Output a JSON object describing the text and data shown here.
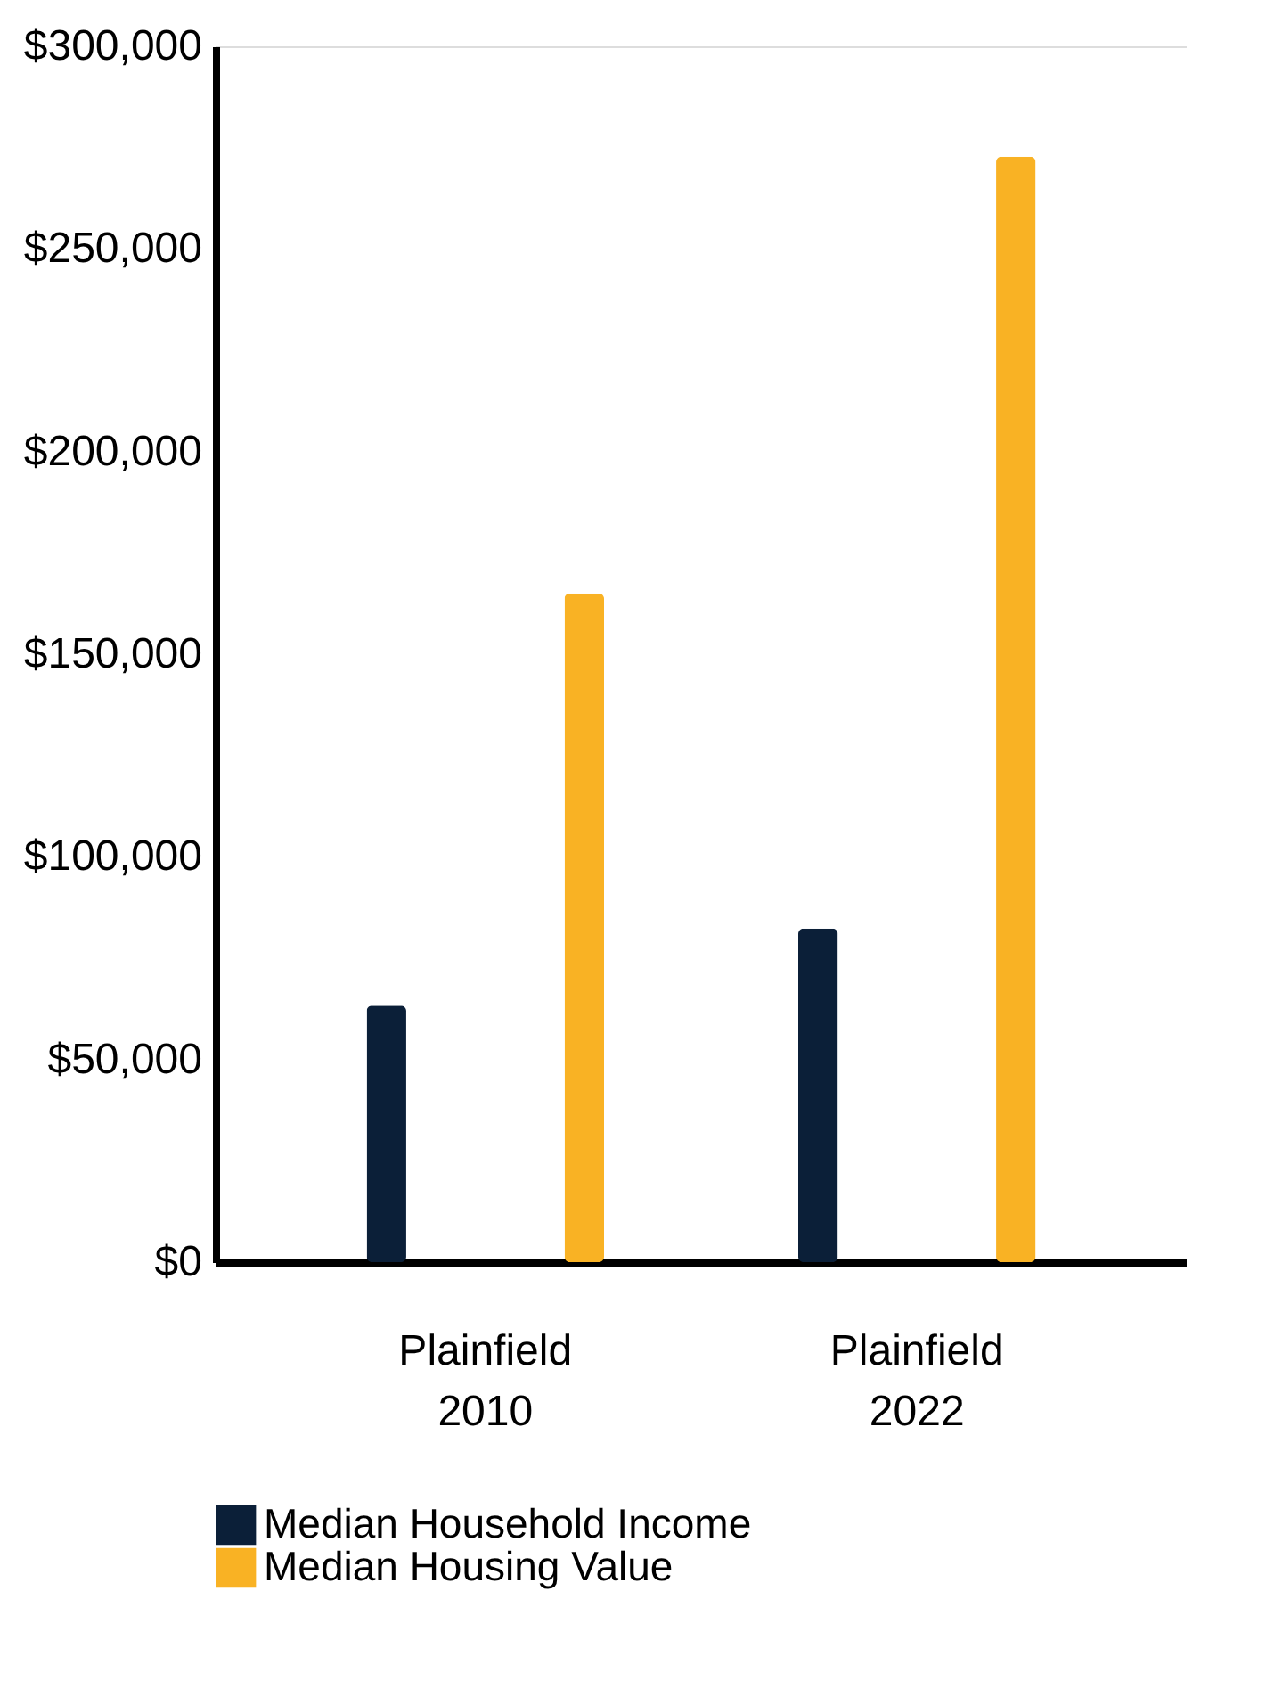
{
  "chart_data": {
    "type": "bar",
    "categories": [
      "Plainfield 2010",
      "Plainfield 2022"
    ],
    "series": [
      {
        "name": "Median Household Income",
        "color": "#0b1f38",
        "values": [
          63300,
          82300
        ]
      },
      {
        "name": "Median Housing Value",
        "color": "#f9b224",
        "values": [
          165000,
          272800
        ]
      }
    ],
    "ylim": [
      0,
      300000
    ],
    "yticks": [
      {
        "value": 0,
        "label": "$0"
      },
      {
        "value": 50000,
        "label": "$50,000"
      },
      {
        "value": 100000,
        "label": "$100,000"
      },
      {
        "value": 150000,
        "label": "$150,000"
      },
      {
        "value": 200000,
        "label": "$200,000"
      },
      {
        "value": 250000,
        "label": "$250,000"
      },
      {
        "value": 300000,
        "label": "$300,000"
      }
    ],
    "grid": false,
    "legend": "bottom left"
  }
}
